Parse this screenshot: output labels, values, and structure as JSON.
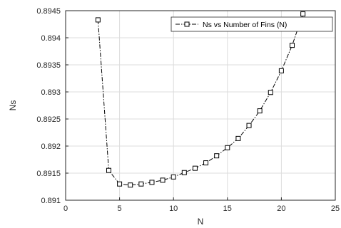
{
  "chart_data": {
    "type": "line",
    "xlabel": "N",
    "ylabel": "Ns",
    "xlim": [
      0,
      25
    ],
    "ylim": [
      0.891,
      0.8945
    ],
    "x_ticks": [
      "0",
      "5",
      "10",
      "15",
      "20",
      "25"
    ],
    "y_ticks": [
      "0.891",
      "0.8915",
      "0.892",
      "0.8925",
      "0.893",
      "0.8935",
      "0.894",
      "0.8945"
    ],
    "grid": true,
    "legend_position": "top-right",
    "series": [
      {
        "name": "Ns vs Number of Fins (N)",
        "line_style": "dash-dot",
        "marker": "square",
        "color": "#000000",
        "x": [
          3,
          4,
          5,
          6,
          7,
          8,
          9,
          10,
          11,
          12,
          13,
          14,
          15,
          16,
          17,
          18,
          19,
          20,
          21,
          22
        ],
        "values": [
          0.89433,
          0.89155,
          0.8913,
          0.89128,
          0.8913,
          0.89133,
          0.89137,
          0.89143,
          0.89151,
          0.89159,
          0.89169,
          0.89182,
          0.89197,
          0.89214,
          0.89238,
          0.89265,
          0.89299,
          0.89339,
          0.89386,
          0.89444
        ]
      }
    ]
  }
}
